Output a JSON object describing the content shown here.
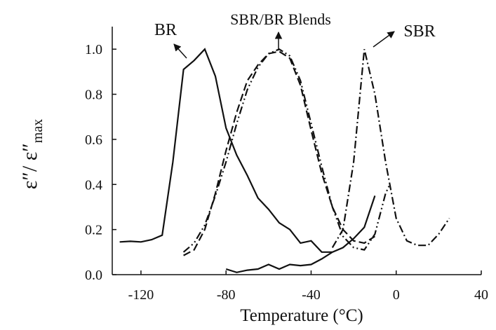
{
  "chart_data": {
    "type": "line",
    "x_label": "Temperature (°C)",
    "y_label": [
      "ε″/ ε″",
      "max"
    ],
    "annotations": [
      "BR",
      "SBR/BR Blends",
      "SBR"
    ],
    "xlim": [
      -133.5,
      40
    ],
    "xticks": [
      -120,
      -80,
      -40,
      0,
      40
    ],
    "ylim": [
      0,
      1.1
    ],
    "yticks": [
      {
        "value": 0,
        "label": "0.0"
      },
      0.2,
      0.4,
      0.6,
      0.8,
      {
        "value": 1,
        "label": "1.0"
      }
    ],
    "series": [
      {
        "color": "#111",
        "dash": "solid",
        "x": [
          -130,
          -125,
          -120,
          -115,
          -110,
          -105,
          -100,
          -95,
          -90,
          -85,
          -80,
          -75,
          -70,
          -65,
          -60,
          -55,
          -50,
          -45,
          -40,
          -35,
          -30
        ],
        "values": [
          0.145,
          0.148,
          0.145,
          0.155,
          0.175,
          0.5,
          0.91,
          0.95,
          1.0,
          0.88,
          0.65,
          0.53,
          0.44,
          0.34,
          0.29,
          0.23,
          0.2,
          0.14,
          0.15,
          0.1,
          0.1
        ]
      },
      {
        "color": "#111",
        "dash": "solid",
        "x": [
          -80,
          -75,
          -70,
          -65,
          -60,
          -55,
          -50,
          -45,
          -40,
          -35,
          -30,
          -25,
          -20,
          -15,
          -10
        ],
        "values": [
          0.025,
          0.01,
          0.02,
          0.025,
          0.045,
          0.025,
          0.045,
          0.04,
          0.045,
          0.07,
          0.1,
          0.12,
          0.16,
          0.21,
          0.35
        ]
      },
      {
        "color": "#111",
        "dash": "dashed",
        "x": [
          -100,
          -95,
          -90,
          -85,
          -80,
          -75,
          -70,
          -65,
          -60,
          -55,
          -50,
          -45,
          -40,
          -35,
          -30,
          -25,
          -20,
          -15,
          -10
        ],
        "values": [
          0.085,
          0.11,
          0.2,
          0.36,
          0.55,
          0.72,
          0.86,
          0.93,
          0.98,
          0.99,
          0.96,
          0.84,
          0.64,
          0.45,
          0.3,
          0.2,
          0.15,
          0.14,
          0.17
        ]
      },
      {
        "color": "#111",
        "dash": "dashdotdot",
        "x": [
          -100,
          -95,
          -90,
          -85,
          -80,
          -75,
          -70,
          -65,
          -60,
          -55,
          -50,
          -45,
          -40,
          -35,
          -30,
          -25,
          -20,
          -15,
          -10,
          -5,
          -3
        ],
        "values": [
          0.1,
          0.14,
          0.22,
          0.35,
          0.5,
          0.67,
          0.82,
          0.92,
          0.98,
          1.0,
          0.97,
          0.86,
          0.67,
          0.48,
          0.3,
          0.17,
          0.12,
          0.11,
          0.18,
          0.36,
          0.4
        ]
      },
      {
        "color": "#111",
        "dash": "dashdot",
        "x": [
          -30,
          -25,
          -20,
          -15,
          -10,
          -5,
          0,
          5,
          10,
          15,
          20,
          25
        ],
        "values": [
          0.12,
          0.2,
          0.5,
          1.0,
          0.8,
          0.5,
          0.25,
          0.15,
          0.13,
          0.13,
          0.18,
          0.25
        ]
      }
    ]
  }
}
